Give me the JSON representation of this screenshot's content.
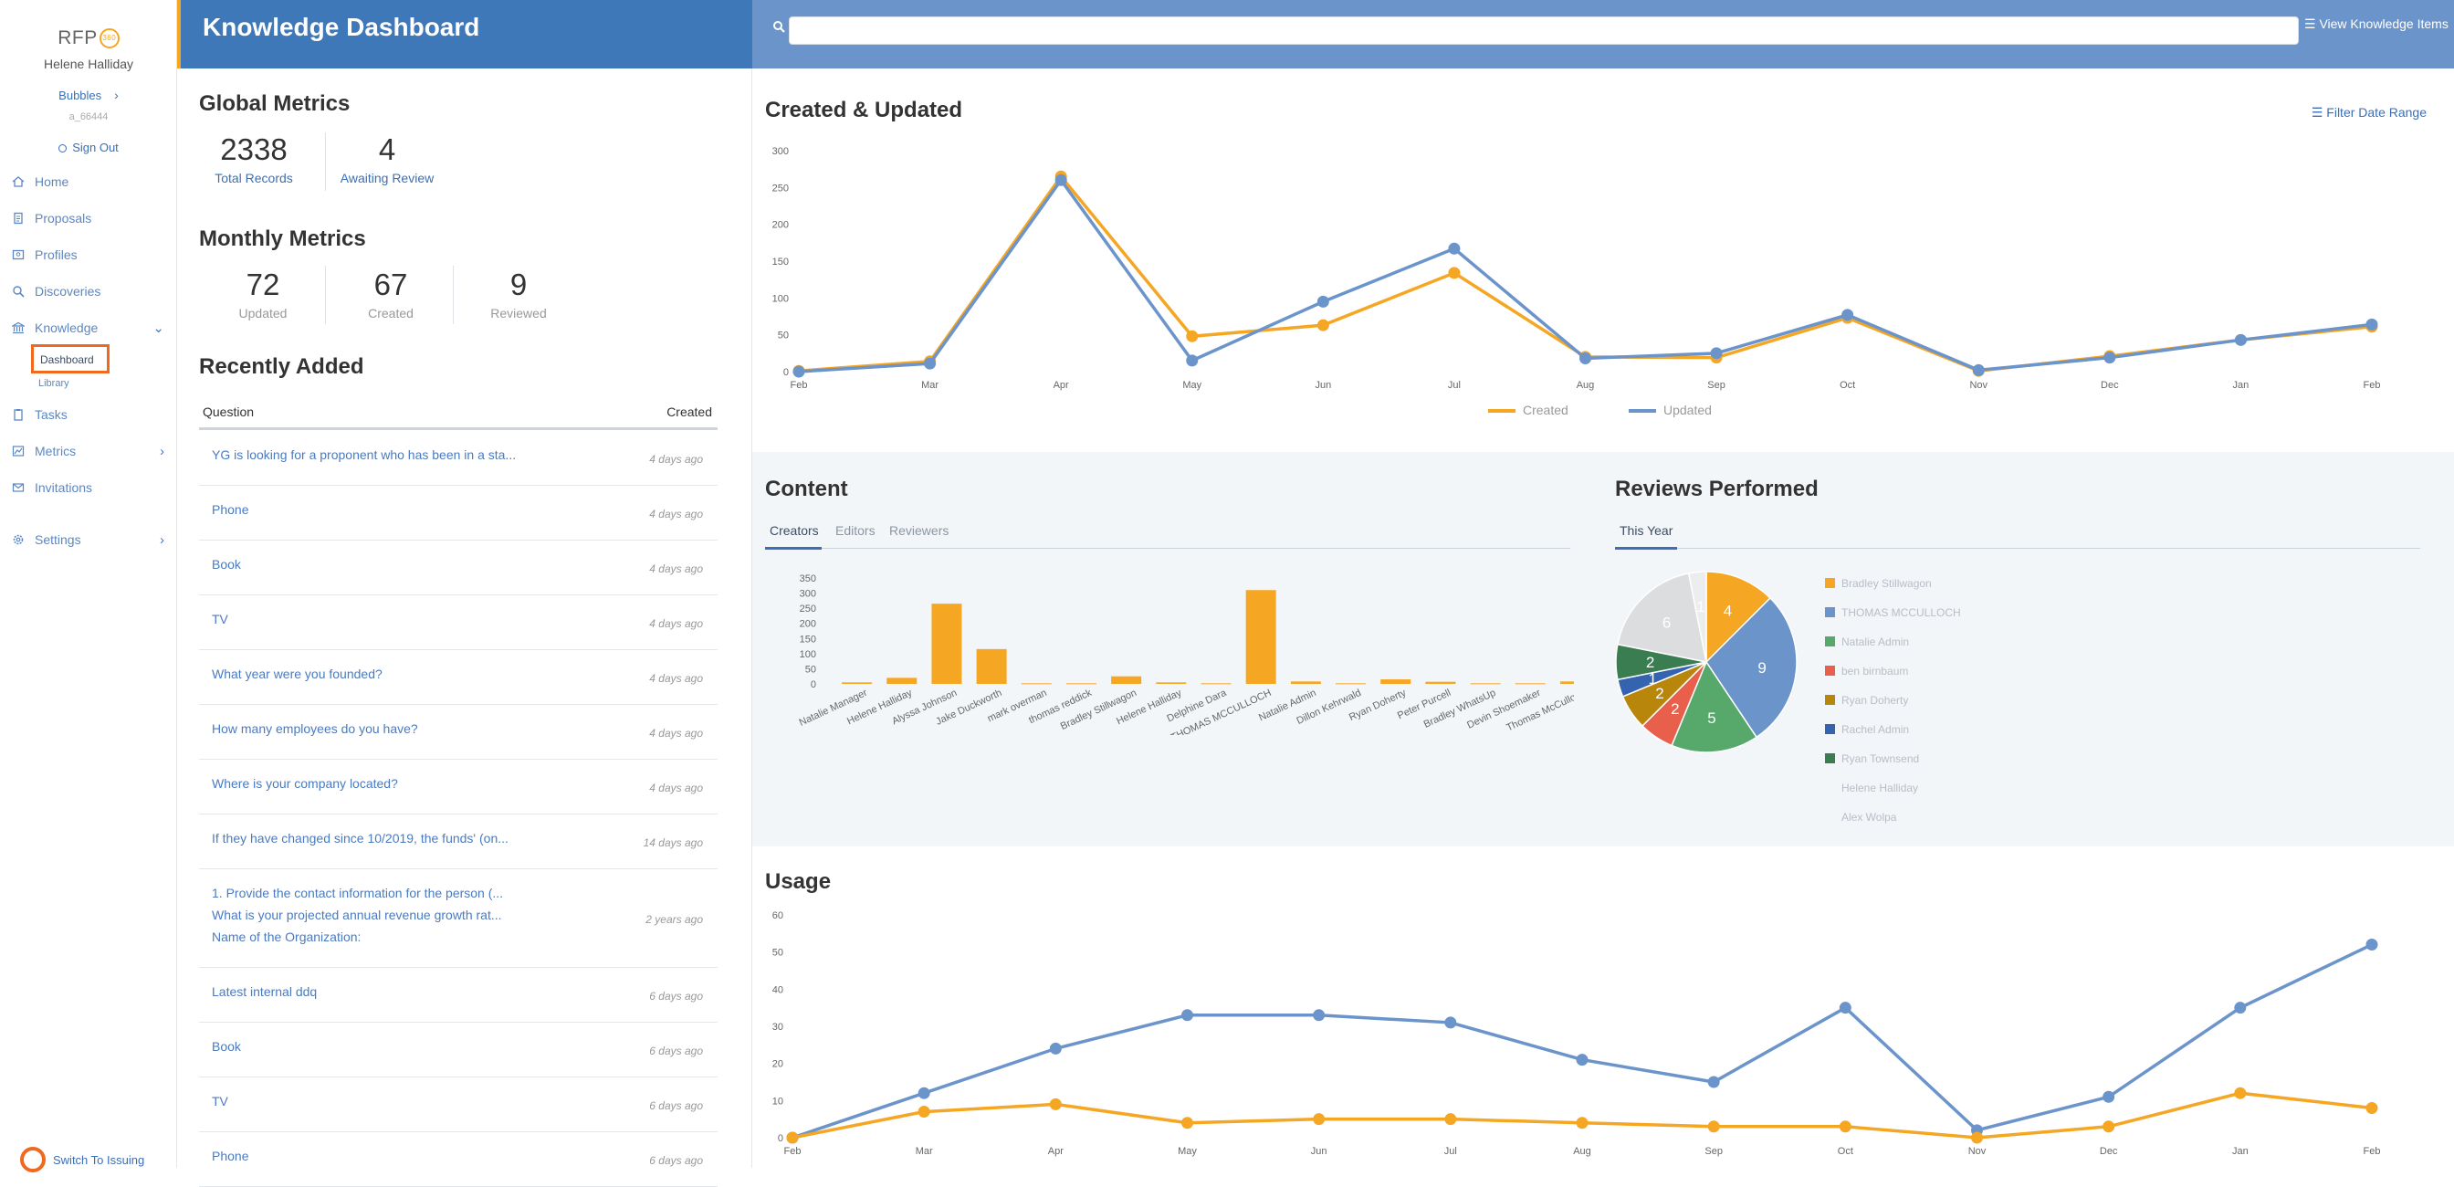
{
  "app": {
    "brand": "RFP",
    "brand_badge": "360",
    "title": "Knowledge Dashboard"
  },
  "user": {
    "name": "Helene Halliday",
    "workspace": "Bubbles",
    "id": "a_66444",
    "signout": "Sign Out"
  },
  "nav": {
    "items": [
      {
        "label": "Home",
        "icon": "home-icon"
      },
      {
        "label": "Proposals",
        "icon": "document-icon"
      },
      {
        "label": "Profiles",
        "icon": "profile-card-icon"
      },
      {
        "label": "Discoveries",
        "icon": "search-icon"
      },
      {
        "label": "Knowledge",
        "icon": "bank-icon"
      },
      {
        "label": "Tasks",
        "icon": "clipboard-icon"
      },
      {
        "label": "Metrics",
        "icon": "chart-icon"
      },
      {
        "label": "Invitations",
        "icon": "mail-icon"
      },
      {
        "label": "Settings",
        "icon": "gear-icon"
      }
    ],
    "knowledge_sub": {
      "dashboard": "Dashboard",
      "library": "Library"
    },
    "switch_issuing": "Switch To Issuing"
  },
  "header": {
    "search_placeholder": "",
    "view_knowledge": "View Knowledge Items"
  },
  "global_metrics": {
    "title": "Global Metrics",
    "total_records": "2338",
    "total_records_label": "Total Records",
    "awaiting_review": "4",
    "awaiting_review_label": "Awaiting Review"
  },
  "monthly_metrics": {
    "title": "Monthly Metrics",
    "updated": "72",
    "updated_label": "Updated",
    "created": "67",
    "created_label": "Created",
    "reviewed": "9",
    "reviewed_label": "Reviewed"
  },
  "recently_added": {
    "title": "Recently Added",
    "col_question": "Question",
    "col_created": "Created",
    "rows": [
      {
        "q": "YG is looking for a proponent who has been in a sta...",
        "d": "4 days ago"
      },
      {
        "q": "Phone",
        "d": "4 days ago"
      },
      {
        "q": "Book",
        "d": "4 days ago"
      },
      {
        "q": "TV",
        "d": "4 days ago"
      },
      {
        "q": "What year were you founded?",
        "d": "4 days ago"
      },
      {
        "q": "How many employees do you have?",
        "d": "4 days ago"
      },
      {
        "q": "Where is your company located?",
        "d": "4 days ago"
      },
      {
        "q": "If they have changed since 10/2019, the funds' (on...",
        "d": "14 days ago"
      },
      {
        "q": "1. Provide the contact information for the person (...\nWhat is your projected annual revenue growth rat...\nName of the Organization:",
        "d": "2 years ago"
      },
      {
        "q": "Latest internal ddq",
        "d": "6 days ago"
      },
      {
        "q": "Book",
        "d": "6 days ago"
      },
      {
        "q": "TV",
        "d": "6 days ago"
      },
      {
        "q": "Phone",
        "d": "6 days ago"
      }
    ]
  },
  "panels": {
    "created_updated": "Created & Updated",
    "filter": "Filter Date Range",
    "content": "Content",
    "content_tabs": [
      "Creators",
      "Editors",
      "Reviewers"
    ],
    "reviews": "Reviews Performed",
    "reviews_tabs": [
      "This Year"
    ],
    "usage": "Usage"
  },
  "chart_data": [
    {
      "type": "line",
      "categories": [
        "Feb",
        "Mar",
        "Apr",
        "May",
        "Jun",
        "Jul",
        "Aug",
        "Sep",
        "Oct",
        "Nov",
        "Dec",
        "Jan",
        "Feb"
      ],
      "ylim": [
        0,
        300
      ],
      "yticks": [
        0,
        50,
        100,
        150,
        200,
        250,
        300
      ],
      "series": [
        {
          "name": "Created",
          "color": "#f5a623",
          "values": [
            1,
            14,
            265,
            48,
            63,
            134,
            20,
            19,
            73,
            1,
            21,
            43,
            61
          ]
        },
        {
          "name": "Updated",
          "color": "#6b94cb",
          "values": [
            0,
            11,
            260,
            15,
            95,
            167,
            18,
            25,
            77,
            2,
            19,
            43,
            64
          ]
        }
      ]
    },
    {
      "type": "bar",
      "categories": [
        "Natalie Manager",
        "Helene Halliday",
        "Alyssa Johnson",
        "Jake Duckworth",
        "mark overman",
        "thomas reddick",
        "Bradley Stillwagon",
        "Helene  Halliday",
        "Delphine Dara",
        "THOMAS MCCULLOCH",
        "Natalie Admin",
        "Dillon Kehrwald",
        "Ryan Doherty",
        "Peter Purcell",
        "Bradley WhatsUp",
        "Devin Shoemaker",
        "Thomas McCulloch"
      ],
      "ylim": [
        0,
        350
      ],
      "yticks": [
        0,
        50,
        100,
        150,
        200,
        250,
        300,
        350
      ],
      "color": "#f5a623",
      "values": [
        5,
        20,
        265,
        115,
        2,
        2,
        25,
        5,
        2,
        310,
        8,
        2,
        15,
        7,
        2,
        2,
        8
      ]
    },
    {
      "type": "pie",
      "slices": [
        {
          "name": "Bradley Stillwagon",
          "value": 4,
          "label": "4",
          "color": "#f5a623"
        },
        {
          "name": "THOMAS MCCULLOCH",
          "value": 9,
          "label": "9",
          "color": "#6b94cb"
        },
        {
          "name": "Natalie Admin",
          "value": 5,
          "label": "5",
          "color": "#56a86b"
        },
        {
          "name": "ben birnbaum",
          "value": 2,
          "label": "2",
          "color": "#e8604c"
        },
        {
          "name": "Ryan Doherty",
          "value": 2,
          "label": "2",
          "color": "#b9860c"
        },
        {
          "name": "Rachel Admin",
          "value": 1,
          "label": "1",
          "color": "#3464b0"
        },
        {
          "name": "Ryan Townsend",
          "value": 2,
          "label": "2",
          "color": "#3a7d50"
        },
        {
          "name": "Helene Halliday",
          "value": 6,
          "label": "6",
          "color": "#dcdddf"
        },
        {
          "name": "Alex Wolpa",
          "value": 1,
          "label": "1",
          "color": "#ecedef"
        }
      ]
    },
    {
      "type": "line",
      "categories": [
        "Feb",
        "Mar",
        "Apr",
        "May",
        "Jun",
        "Jul",
        "Aug",
        "Sep",
        "Oct",
        "Nov",
        "Dec",
        "Jan",
        "Feb"
      ],
      "ylim": [
        0,
        60
      ],
      "yticks": [
        0,
        10,
        20,
        30,
        40,
        50,
        60
      ],
      "series": [
        {
          "color": "#6b94cb",
          "values": [
            0,
            12,
            24,
            33,
            33,
            31,
            21,
            15,
            35,
            2,
            11,
            35,
            52
          ]
        },
        {
          "color": "#f5a623",
          "values": [
            0,
            7,
            9,
            4,
            5,
            5,
            4,
            3,
            3,
            0,
            3,
            12,
            8
          ]
        }
      ]
    }
  ]
}
